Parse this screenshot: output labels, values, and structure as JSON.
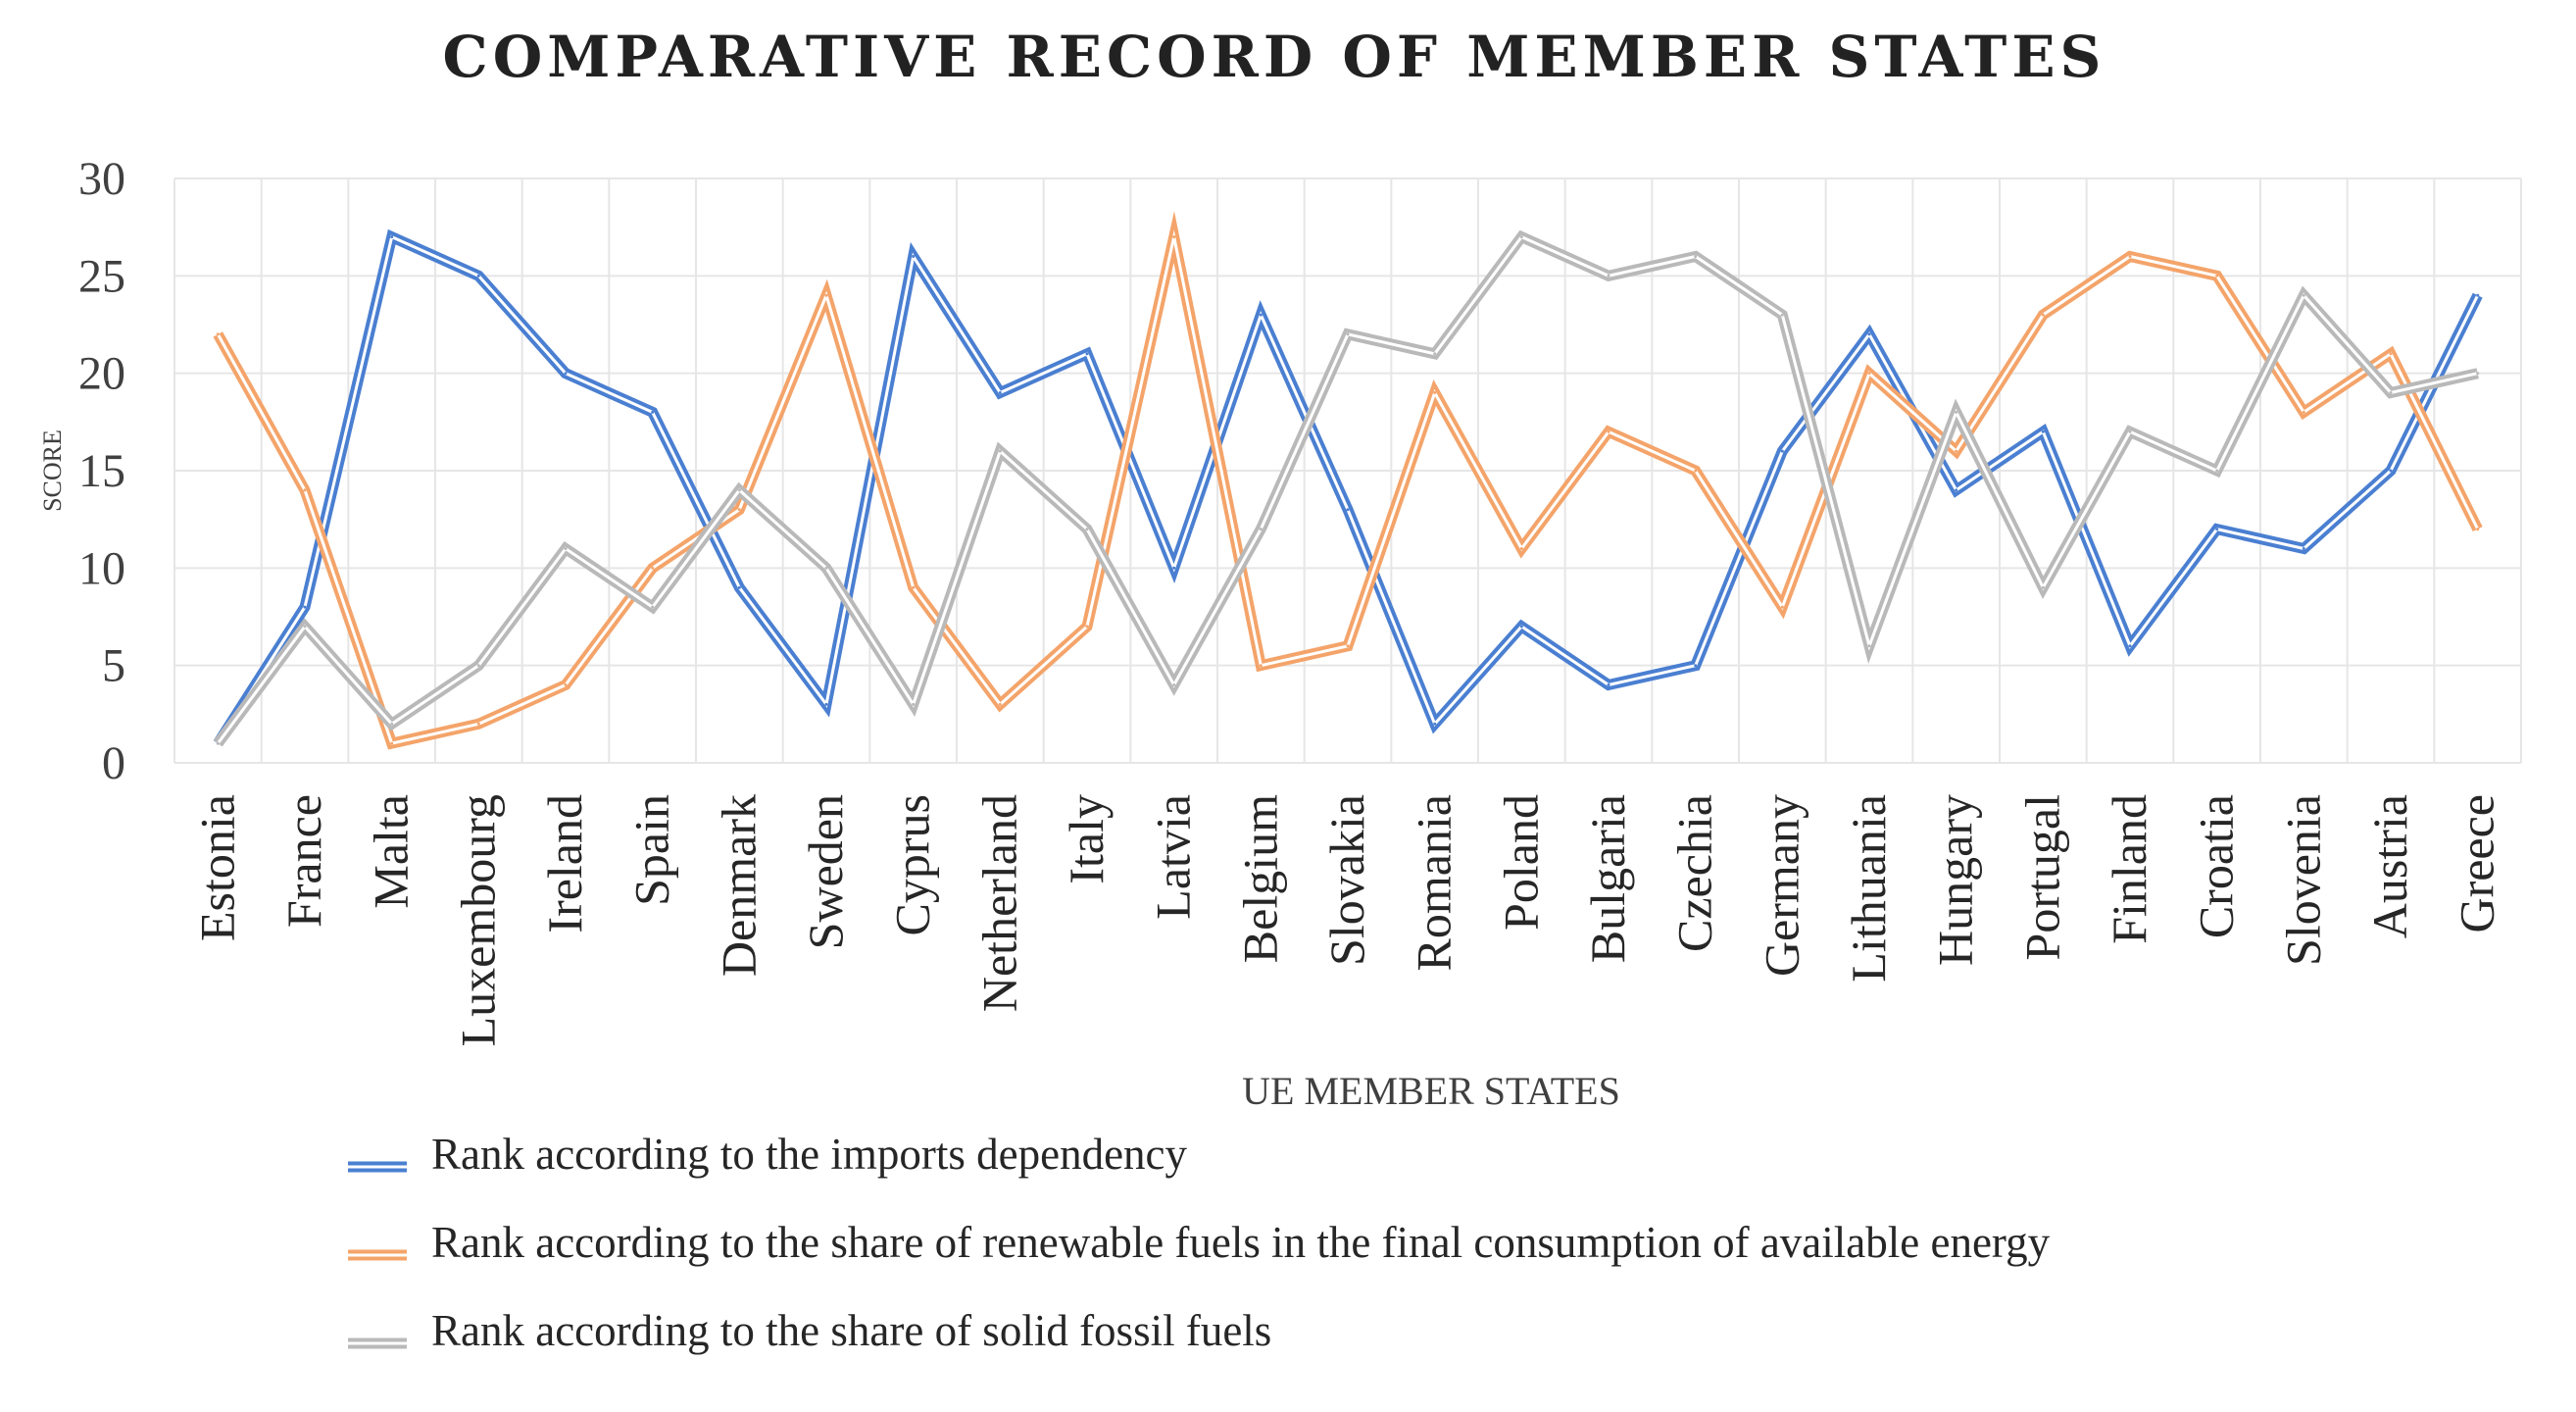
{
  "chart_data": {
    "type": "line",
    "title": "COMPARATIVE RECORD OF MEMBER STATES",
    "xlabel": "UE MEMBER STATES",
    "ylabel": "SCORE",
    "ylim": [
      0,
      30
    ],
    "yticks": [
      "0",
      "5",
      "10",
      "15",
      "20",
      "25",
      "30"
    ],
    "grid": true,
    "legend_position": "bottom",
    "categories": [
      "Estonia",
      "France",
      "Malta",
      "Luxembourg",
      "Ireland",
      "Spain",
      "Denmark",
      "Sweden",
      "Cyprus",
      "Netherland",
      "Italy",
      "Latvia",
      "Belgium",
      "Slovakia",
      "Romania",
      "Poland",
      "Bulgaria",
      "Czechia",
      "Germany",
      "Lithuania",
      "Hungary",
      "Portugal",
      "Finland",
      "Croatia",
      "Slovenia",
      "Austria",
      "Greece"
    ],
    "series": [
      {
        "name": "Rank according to the imports dependency",
        "color": "#4a7fd1",
        "values": [
          1,
          8,
          27,
          25,
          20,
          18,
          9,
          3,
          26,
          19,
          21,
          10,
          23,
          13,
          2,
          7,
          4,
          5,
          16,
          22,
          14,
          17,
          6,
          12,
          11,
          15,
          24
        ]
      },
      {
        "name": "Rank according to the share of renewable fuels in the final consumption of available energy",
        "color": "#f4a46a",
        "values": [
          22,
          14,
          1,
          2,
          4,
          10,
          13,
          24,
          9,
          3,
          7,
          27,
          5,
          6,
          19,
          11,
          17,
          15,
          8,
          20,
          16,
          23,
          26,
          25,
          18,
          21,
          12
        ]
      },
      {
        "name": "Rank according to the share of solid fossil fuels",
        "color": "#b9b9b9",
        "values": [
          1,
          7,
          2,
          5,
          11,
          8,
          14,
          10,
          3,
          16,
          12,
          4,
          12,
          22,
          21,
          27,
          25,
          26,
          23,
          6,
          18,
          9,
          17,
          15,
          24,
          19,
          20
        ]
      }
    ]
  }
}
